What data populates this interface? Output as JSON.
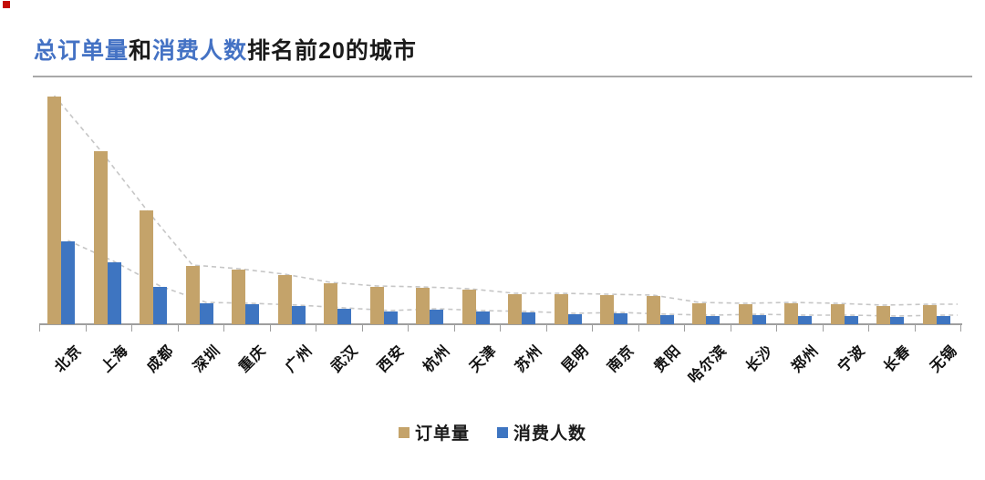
{
  "page": {
    "corner_mark_color": "#c40d06",
    "background": "#ffffff",
    "divider_color": "#a9a9a9",
    "axis_color": "#9e9e9e",
    "trendline_color": "#c6c6c6"
  },
  "title": {
    "full_text": "总订单量和消费人数排名前20的城市",
    "segments": [
      {
        "text": "总订单量",
        "color": "#4472C4"
      },
      {
        "text": "和",
        "color": "#1a1a1a"
      },
      {
        "text": "消费人数",
        "color": "#4472C4"
      },
      {
        "text": "排名前20的城市",
        "color": "#1a1a1a"
      }
    ]
  },
  "legend": {
    "items": [
      {
        "label": "订单量",
        "color": "#C4A36A"
      },
      {
        "label": "消费人数",
        "color": "#3E75C1"
      }
    ]
  },
  "chart_data": {
    "type": "bar",
    "title": "总订单量和消费人数排名前20的城市",
    "categories": [
      "北京",
      "上海",
      "成都",
      "深圳",
      "重庆",
      "广州",
      "武汉",
      "西安",
      "杭州",
      "天津",
      "苏州",
      "昆明",
      "南京",
      "贵阳",
      "哈尔滨",
      "长沙",
      "郑州",
      "宁波",
      "长春",
      "无锡"
    ],
    "series": [
      {
        "name": "订单量",
        "color": "#C4A36A",
        "values": [
          250,
          190,
          125,
          64,
          60,
          54,
          45,
          41,
          40,
          38,
          33,
          33,
          32,
          31,
          23,
          22,
          23,
          22,
          20,
          21
        ]
      },
      {
        "name": "消费人数",
        "color": "#3E75C1",
        "values": [
          91,
          68,
          41,
          23,
          22,
          20,
          17,
          14,
          16,
          14,
          13,
          11,
          12,
          10,
          9,
          10,
          9,
          9,
          8,
          9
        ]
      }
    ],
    "value_axis": "none shown (no y-axis labels, no gridlines); values are estimated relative heights in px",
    "xlabel": "",
    "ylabel": "",
    "category_label_rotation_deg": 45,
    "legend_position": "bottom",
    "trendlines": "two gray dashed lines tracking the tops of each series' bars"
  }
}
